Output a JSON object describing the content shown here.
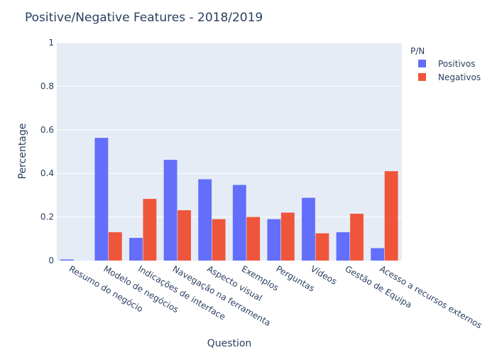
{
  "chart_data": {
    "type": "bar",
    "title": "Positive/Negative Features  - 2018/2019",
    "xlabel": "Question",
    "ylabel": "Percentage",
    "ylim": [
      0,
      1
    ],
    "yticks": [
      0,
      0.2,
      0.4,
      0.6,
      0.8,
      1
    ],
    "ytick_labels": [
      "0",
      "0.2",
      "0.4",
      "0.6",
      "0.8",
      "1"
    ],
    "grid": true,
    "legend": {
      "title": "P/N",
      "placement": "top-right"
    },
    "categories": [
      "Resumo do negócio",
      "Modelo de negócios",
      "Indicações de interface",
      "Navegação na ferramenta",
      "Aspecto visual",
      "Exemplos",
      "Perguntas",
      "Vídeos",
      "Gestão de Equipa",
      "Acesso a recursos externos"
    ],
    "series": [
      {
        "name": "Positivos",
        "color": "#636efa",
        "values": [
          0.005,
          0.563,
          0.104,
          0.462,
          0.373,
          0.347,
          0.19,
          0.288,
          0.13,
          0.057
        ]
      },
      {
        "name": "Negativos",
        "color": "#ef553b",
        "values": [
          0,
          0.13,
          0.283,
          0.231,
          0.19,
          0.2,
          0.22,
          0.125,
          0.215,
          0.41
        ]
      }
    ]
  }
}
